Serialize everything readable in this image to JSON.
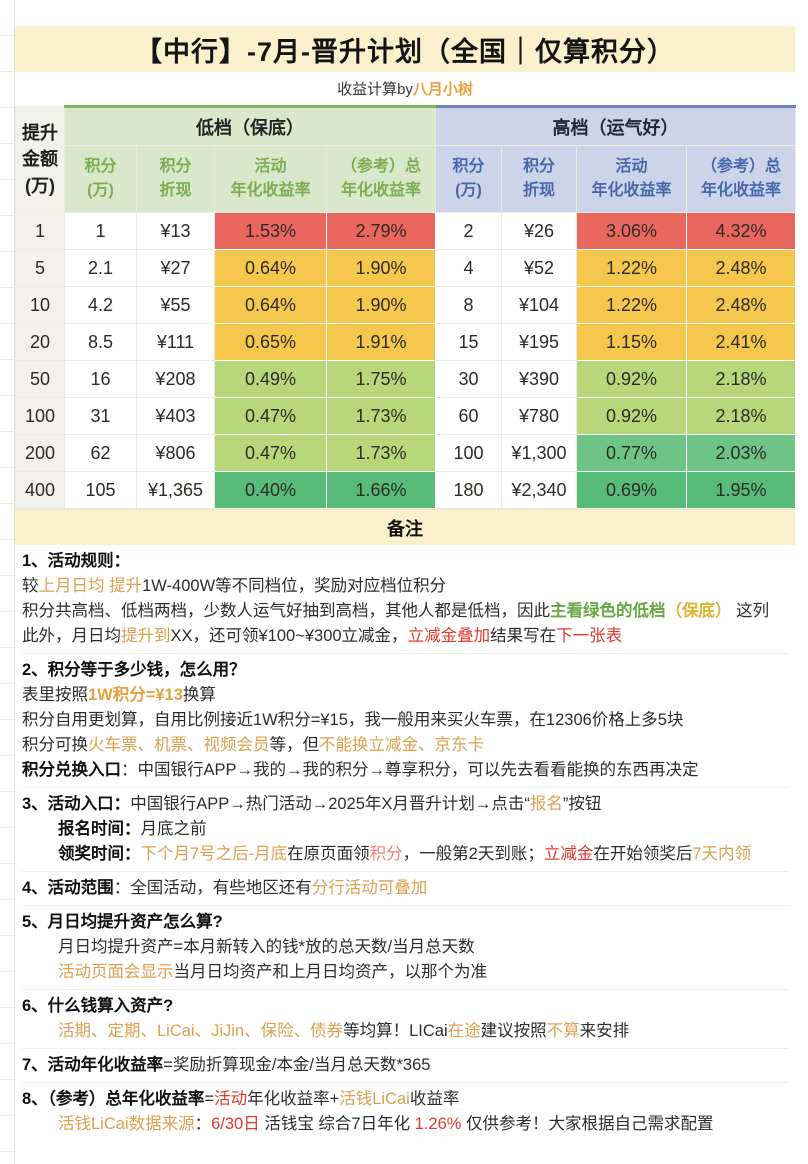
{
  "page": {
    "title": "【中行】-7月-晋升计划（全国｜仅算积分）",
    "subtitle_prefix": "收益计算by",
    "subtitle_author": "八月小树"
  },
  "colors": {
    "title_band": "#FAF0CC",
    "low_header_bg": "#D9E8CA",
    "low_header_text": "#7CAD53",
    "high_header_bg": "#CBD4E8",
    "high_header_text": "#4A67AE",
    "cell_red": "#EA675F",
    "cell_yellow": "#F6C74D",
    "cell_light_green": "#B6D87B",
    "cell_mid_green": "#6EC487",
    "cell_deep_green": "#57BB79",
    "accent_orange": "#E6A23C",
    "accent_red": "#E23A2B"
  },
  "table": {
    "corner_header": [
      "提升",
      "金额",
      "(万)"
    ],
    "groups": [
      {
        "label": "低档（保底）"
      },
      {
        "label": "高档（运气好）"
      }
    ],
    "subheaders": [
      [
        "积分",
        "(万)"
      ],
      [
        "积分",
        "折现"
      ],
      [
        "活动",
        "年化收益率"
      ],
      [
        "（参考）总",
        "年化收益率"
      ]
    ],
    "rows": [
      {
        "amount": "1",
        "low": [
          "1",
          "¥13",
          "1.53%",
          "2.79%"
        ],
        "low_tone": "t-red",
        "high": [
          "2",
          "¥26",
          "3.06%",
          "4.32%"
        ],
        "high_tone": "t-red"
      },
      {
        "amount": "5",
        "low": [
          "2.1",
          "¥27",
          "0.64%",
          "1.90%"
        ],
        "low_tone": "t-yel",
        "high": [
          "4",
          "¥52",
          "1.22%",
          "2.48%"
        ],
        "high_tone": "t-yel"
      },
      {
        "amount": "10",
        "low": [
          "4.2",
          "¥55",
          "0.64%",
          "1.90%"
        ],
        "low_tone": "t-yel",
        "high": [
          "8",
          "¥104",
          "1.22%",
          "2.48%"
        ],
        "high_tone": "t-yel"
      },
      {
        "amount": "20",
        "low": [
          "8.5",
          "¥111",
          "0.65%",
          "1.91%"
        ],
        "low_tone": "t-yel",
        "high": [
          "15",
          "¥195",
          "1.15%",
          "2.41%"
        ],
        "high_tone": "t-yel"
      },
      {
        "amount": "50",
        "low": [
          "16",
          "¥208",
          "0.49%",
          "1.75%"
        ],
        "low_tone": "t-lg",
        "high": [
          "30",
          "¥390",
          "0.92%",
          "2.18%"
        ],
        "high_tone": "t-lg"
      },
      {
        "amount": "100",
        "low": [
          "31",
          "¥403",
          "0.47%",
          "1.73%"
        ],
        "low_tone": "t-lg",
        "high": [
          "60",
          "¥780",
          "0.92%",
          "2.18%"
        ],
        "high_tone": "t-lg"
      },
      {
        "amount": "200",
        "low": [
          "62",
          "¥806",
          "0.47%",
          "1.73%"
        ],
        "low_tone": "t-lg",
        "high": [
          "100",
          "¥1,300",
          "0.77%",
          "2.03%"
        ],
        "high_tone": "t-mg"
      },
      {
        "amount": "400",
        "low": [
          "105",
          "¥1,365",
          "0.40%",
          "1.66%"
        ],
        "low_tone": "t-dg",
        "high": [
          "180",
          "¥2,340",
          "0.69%",
          "1.95%"
        ],
        "high_tone": "t-dg"
      }
    ],
    "footer": "备注"
  },
  "notes": [
    {
      "lines": [
        {
          "ind": 0,
          "seg": [
            {
              "t": "1、活动规则：",
              "s": "b"
            }
          ]
        },
        {
          "ind": 0,
          "seg": [
            {
              "t": "较",
              "s": "n"
            },
            {
              "t": "上月日均 提升",
              "s": "o"
            },
            {
              "t": "1W-400W等不同档位，奖励对应档位积分",
              "s": "n"
            }
          ]
        },
        {
          "ind": 0,
          "seg": [
            {
              "t": "积分共高档、低档两档，少数人运气好抽到高档，其他人都是低档，因此",
              "s": "n"
            },
            {
              "t": "主看绿色的低档",
              "s": "g"
            },
            {
              "t": "（保底）",
              "s": "y"
            },
            {
              "t": " 这列",
              "s": "n"
            }
          ]
        },
        {
          "ind": 0,
          "seg": [
            {
              "t": "此外，月日均",
              "s": "n"
            },
            {
              "t": "提升到",
              "s": "o"
            },
            {
              "t": "XX，还可领¥100~¥300立减金，",
              "s": "n"
            },
            {
              "t": "立减金叠加",
              "s": "r"
            },
            {
              "t": "结果写在",
              "s": "n"
            },
            {
              "t": "下一张表",
              "s": "r"
            }
          ]
        }
      ]
    },
    {
      "lines": [
        {
          "ind": 0,
          "seg": [
            {
              "t": "2、积分等于多少钱，怎么用？",
              "s": "b"
            }
          ]
        },
        {
          "ind": 0,
          "seg": [
            {
              "t": "表里按照",
              "s": "n"
            },
            {
              "t": "1W积分=¥13",
              "s": "ob"
            },
            {
              "t": "换算",
              "s": "n"
            }
          ]
        },
        {
          "ind": 0,
          "seg": [
            {
              "t": "积分自用更划算，自用比例接近1W积分=¥15，我一般用来买火车票，在12306价格上多5块",
              "s": "n"
            }
          ]
        },
        {
          "ind": 0,
          "seg": [
            {
              "t": "积分可换",
              "s": "n"
            },
            {
              "t": "火车票、机票、视频会员",
              "s": "o"
            },
            {
              "t": "等，但",
              "s": "n"
            },
            {
              "t": "不能换立减金、京东卡",
              "s": "o"
            }
          ]
        },
        {
          "ind": 0,
          "seg": [
            {
              "t": "积分兑换入口",
              "s": "b"
            },
            {
              "t": "：中国银行APP→我的→我的积分→尊享积分，可以先去看看能换的东西再决定",
              "s": "n"
            }
          ]
        }
      ]
    },
    {
      "lines": [
        {
          "ind": 0,
          "seg": [
            {
              "t": "3、活动入口：",
              "s": "b"
            },
            {
              "t": "中国银行APP→热门活动→2025年X月晋升计划→点击“",
              "s": "n"
            },
            {
              "t": "报名",
              "s": "o"
            },
            {
              "t": "”按钮",
              "s": "n"
            }
          ]
        },
        {
          "ind": 1,
          "seg": [
            {
              "t": "报名时间：",
              "s": "b"
            },
            {
              "t": "月底之前",
              "s": "n"
            }
          ]
        },
        {
          "ind": 1,
          "seg": [
            {
              "t": "领奖时间：",
              "s": "b"
            },
            {
              "t": "下个月7号之后-月底",
              "s": "o"
            },
            {
              "t": "在原页面领",
              "s": "n"
            },
            {
              "t": "积分",
              "s": "p"
            },
            {
              "t": "，一般第2天到账；",
              "s": "n"
            },
            {
              "t": "立减金",
              "s": "r"
            },
            {
              "t": "在开始领奖后",
              "s": "n"
            },
            {
              "t": "7天内领",
              "s": "o"
            }
          ]
        }
      ]
    },
    {
      "lines": [
        {
          "ind": 0,
          "seg": [
            {
              "t": "4、活动范围",
              "s": "b"
            },
            {
              "t": "：全国活动，有些地区还有",
              "s": "n"
            },
            {
              "t": "分行活动可叠加",
              "s": "o"
            }
          ]
        }
      ]
    },
    {
      "lines": [
        {
          "ind": 0,
          "seg": [
            {
              "t": "5、月日均提升资产怎么算?",
              "s": "b"
            }
          ]
        },
        {
          "ind": 1,
          "seg": [
            {
              "t": "月日均提升资产=本月新转入的钱*放的总天数/当月总天数",
              "s": "n"
            }
          ]
        },
        {
          "ind": 1,
          "seg": [
            {
              "t": "活动页面会显示",
              "s": "o"
            },
            {
              "t": "当月日均资产和上月日均资产，以那个为准",
              "s": "n"
            }
          ]
        }
      ]
    },
    {
      "lines": [
        {
          "ind": 0,
          "seg": [
            {
              "t": "6、什么钱算入资产?",
              "s": "b"
            }
          ]
        },
        {
          "ind": 1,
          "seg": [
            {
              "t": "活期、定期、LiCai、JiJin、保险、债券",
              "s": "o"
            },
            {
              "t": "等均算！LICai",
              "s": "n"
            },
            {
              "t": "在途",
              "s": "o"
            },
            {
              "t": "建议按照",
              "s": "n"
            },
            {
              "t": "不算",
              "s": "o"
            },
            {
              "t": "来安排",
              "s": "n"
            }
          ]
        }
      ]
    },
    {
      "lines": [
        {
          "ind": 0,
          "seg": [
            {
              "t": "7、活动年化收益率",
              "s": "b"
            },
            {
              "t": "=奖励折算现金/本金/当月总天数*365",
              "s": "n"
            }
          ]
        }
      ]
    },
    {
      "lines": [
        {
          "ind": 0,
          "seg": [
            {
              "t": "8、（参考）总年化收益率",
              "s": "b"
            },
            {
              "t": "=",
              "s": "n"
            },
            {
              "t": "活动",
              "s": "r"
            },
            {
              "t": "年化收益率+",
              "s": "n"
            },
            {
              "t": "活钱LiCai",
              "s": "o"
            },
            {
              "t": "收益率",
              "s": "n"
            }
          ]
        },
        {
          "ind": 1,
          "seg": [
            {
              "t": "活钱LiCai数据来源",
              "s": "o"
            },
            {
              "t": "：",
              "s": "n"
            },
            {
              "t": "6/30日",
              "s": "r"
            },
            {
              "t": " 活钱宝  综合7日年化 ",
              "s": "n"
            },
            {
              "t": "1.26%",
              "s": "r"
            },
            {
              "t": " 仅供参考！大家根据自己需求配置",
              "s": "n"
            }
          ]
        }
      ]
    }
  ]
}
